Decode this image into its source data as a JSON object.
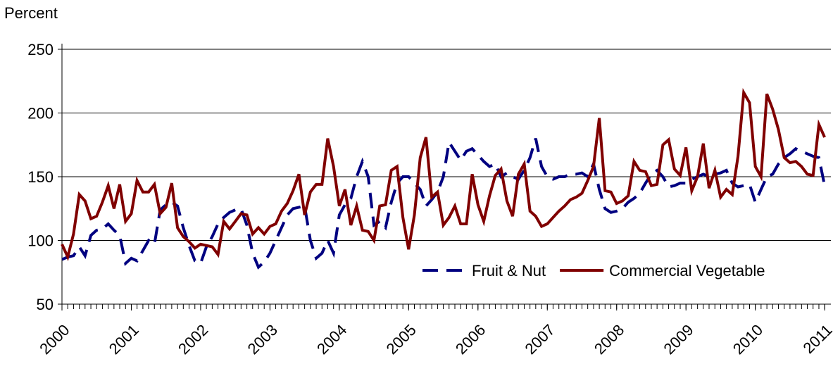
{
  "chart_data": {
    "type": "line",
    "y_label": "Percent",
    "x": [
      2000,
      2000.083,
      2000.167,
      2000.25,
      2000.333,
      2000.417,
      2000.5,
      2000.583,
      2000.667,
      2000.75,
      2000.833,
      2000.917,
      2001,
      2001.083,
      2001.167,
      2001.25,
      2001.333,
      2001.417,
      2001.5,
      2001.583,
      2001.667,
      2001.75,
      2001.833,
      2001.917,
      2002,
      2002.083,
      2002.167,
      2002.25,
      2002.333,
      2002.417,
      2002.5,
      2002.583,
      2002.667,
      2002.75,
      2002.833,
      2002.917,
      2003,
      2003.083,
      2003.167,
      2003.25,
      2003.333,
      2003.417,
      2003.5,
      2003.583,
      2003.667,
      2003.75,
      2003.833,
      2003.917,
      2004,
      2004.083,
      2004.167,
      2004.25,
      2004.333,
      2004.417,
      2004.5,
      2004.583,
      2004.667,
      2004.75,
      2004.833,
      2004.917,
      2005,
      2005.083,
      2005.167,
      2005.25,
      2005.333,
      2005.417,
      2005.5,
      2005.583,
      2005.667,
      2005.75,
      2005.833,
      2005.917,
      2006,
      2006.083,
      2006.167,
      2006.25,
      2006.333,
      2006.417,
      2006.5,
      2006.583,
      2006.667,
      2006.75,
      2006.833,
      2006.917,
      2007,
      2007.083,
      2007.167,
      2007.25,
      2007.333,
      2007.417,
      2007.5,
      2007.583,
      2007.667,
      2007.75,
      2007.833,
      2007.917,
      2008,
      2008.083,
      2008.167,
      2008.25,
      2008.333,
      2008.417,
      2008.5,
      2008.583,
      2008.667,
      2008.75,
      2008.833,
      2008.917,
      2009,
      2009.083,
      2009.167,
      2009.25,
      2009.333,
      2009.417,
      2009.5,
      2009.583,
      2009.667,
      2009.75,
      2009.833,
      2009.917,
      2010,
      2010.083,
      2010.167,
      2010.25,
      2010.333,
      2010.417,
      2010.5,
      2010.583,
      2010.667,
      2010.75,
      2010.833,
      2010.917,
      2011
    ],
    "series": [
      {
        "name": "Fruit & Nut",
        "color": "#000080",
        "dash": true,
        "values": [
          85,
          87,
          88,
          95,
          88,
          104,
          108,
          109,
          113,
          108,
          104,
          82,
          86,
          84,
          92,
          100,
          97,
          124,
          128,
          130,
          127,
          110,
          96,
          84,
          82,
          95,
          103,
          113,
          118,
          122,
          124,
          125,
          112,
          90,
          79,
          83,
          90,
          100,
          110,
          120,
          125,
          126,
          127,
          100,
          86,
          90,
          100,
          90,
          120,
          128,
          133,
          150,
          162,
          150,
          112,
          115,
          110,
          130,
          145,
          150,
          150,
          145,
          140,
          127,
          132,
          138,
          150,
          177,
          170,
          163,
          170,
          172,
          167,
          162,
          158,
          160,
          150,
          153,
          150,
          148,
          155,
          165,
          180,
          158,
          150,
          148,
          150,
          150,
          152,
          152,
          153,
          150,
          160,
          140,
          125,
          122,
          123,
          125,
          130,
          133,
          137,
          145,
          152,
          155,
          150,
          142,
          143,
          145,
          145,
          148,
          150,
          152,
          150,
          152,
          153,
          155,
          145,
          142,
          143,
          144,
          130,
          140,
          150,
          152,
          160,
          165,
          168,
          172,
          170,
          168,
          166,
          165,
          143
        ]
      },
      {
        "name": "Commercial Vegetable",
        "color": "#800000",
        "dash": false,
        "values": [
          97,
          87,
          105,
          136,
          131,
          117,
          119,
          130,
          143,
          125,
          144,
          115,
          121,
          147,
          138,
          138,
          144,
          121,
          126,
          145,
          110,
          103,
          99,
          94,
          97,
          96,
          95,
          89,
          115,
          109,
          115,
          121,
          120,
          105,
          110,
          105,
          111,
          113,
          123,
          129,
          139,
          152,
          120,
          138,
          144,
          144,
          180,
          158,
          127,
          140,
          112,
          127,
          108,
          107,
          100,
          127,
          128,
          155,
          158,
          118,
          93,
          120,
          165,
          181,
          134,
          138,
          112,
          118,
          127,
          113,
          113,
          152,
          128,
          115,
          135,
          151,
          156,
          131,
          119,
          152,
          160,
          123,
          119,
          111,
          113,
          118,
          123,
          127,
          132,
          134,
          137,
          147,
          158,
          196,
          139,
          138,
          129,
          131,
          135,
          162,
          155,
          154,
          143,
          144,
          175,
          179,
          156,
          151,
          173,
          139,
          150,
          176,
          141,
          155,
          134,
          140,
          136,
          166,
          216,
          208,
          158,
          150,
          215,
          203,
          187,
          165,
          161,
          162,
          158,
          152,
          151,
          191,
          181
        ]
      }
    ],
    "xlim": [
      2000,
      2011.09
    ],
    "xticks": [
      2000,
      2001,
      2002,
      2003,
      2004,
      2005,
      2006,
      2007,
      2008,
      2009,
      2010,
      2011
    ],
    "ylim": [
      50,
      250
    ],
    "yticks": [
      50,
      100,
      150,
      200,
      250
    ],
    "grid": true,
    "legend": "lower right"
  }
}
